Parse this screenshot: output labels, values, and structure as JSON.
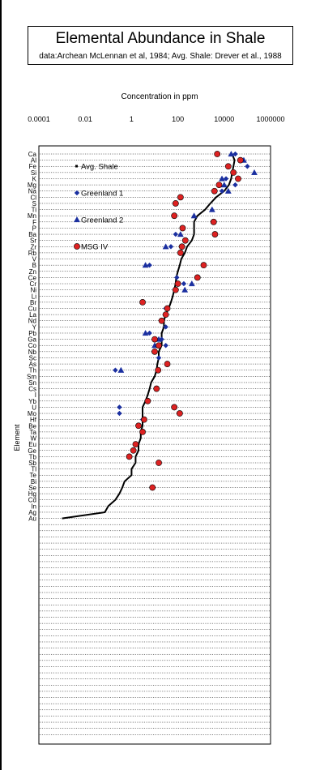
{
  "chart_data": {
    "type": "scatter",
    "title": "Elemental  Abundance in Shale",
    "subtitle": "data:Archean McLennan et al, 1984; Avg. Shale:  Drever et al., 1988",
    "xlabel": "Concentration in ppm",
    "ylabel": "Element",
    "x_scale": "log",
    "xlim": [
      0.0001,
      1000000
    ],
    "x_ticks": [
      "0.0001",
      "0.01",
      "1",
      "100",
      "10000",
      "1000000"
    ],
    "grid": "horizontal",
    "legend_position": "top-left",
    "elements": [
      "Ca",
      "Al",
      "Fe",
      "Si",
      "K",
      "Mg",
      "Na",
      "Cl",
      "S",
      "Ti",
      "Mn",
      "F",
      "P",
      "Ba",
      "Sr",
      "Zr",
      "Rb",
      "V",
      "B",
      "Zn",
      "Ce",
      "Cr",
      "Ni",
      "Li",
      "Br",
      "Cu",
      "La",
      "Nd",
      "Y",
      "Pb",
      "Ga",
      "Co",
      "Nb",
      "Sc",
      "As",
      "Th",
      "Sm",
      "Sn",
      "Cs",
      "I",
      "Yb",
      "U",
      "Mo",
      "Hf",
      "Be",
      "Ta",
      "W",
      "Eu",
      "Ge",
      "Tb",
      "Sb",
      "Tl",
      "Te",
      "Bi",
      "Se",
      "Hg",
      "Cd",
      "In",
      "Ag",
      "Au"
    ],
    "series": [
      {
        "name": "Avg. Shale",
        "marker": "line",
        "color": "#000000",
        "values": [
          22000,
          28000,
          25000,
          22000,
          20000,
          16000,
          10000,
          4500,
          2500,
          1500,
          700,
          500,
          500,
          500,
          400,
          250,
          200,
          140,
          120,
          100,
          85,
          80,
          70,
          60,
          50,
          40,
          30,
          25,
          25,
          20,
          20,
          20,
          15,
          15,
          13,
          12,
          10,
          7,
          6,
          5,
          4,
          3,
          3,
          3,
          3,
          2.5,
          2.5,
          2,
          2,
          1.5,
          1.5,
          1,
          1,
          0.5,
          0.4,
          0.3,
          0.2,
          0.1,
          0.07,
          0.001
        ]
      },
      {
        "name": "Greenland 1",
        "marker": "diamond",
        "color": "#1a2fa0",
        "points": [
          [
            "Ca",
            30000
          ],
          [
            "Fe",
            100000
          ],
          [
            "K",
            12000
          ],
          [
            "Mg",
            30000
          ],
          [
            "Na",
            8000
          ],
          [
            "Ba",
            80
          ],
          [
            "Zr",
            50
          ],
          [
            "B",
            6
          ],
          [
            "Ce",
            90
          ],
          [
            "Cr",
            180
          ],
          [
            "Cu",
            30
          ],
          [
            "Y",
            30
          ],
          [
            "Pb",
            6
          ],
          [
            "Ga",
            20
          ],
          [
            "Co",
            30
          ],
          [
            "Sc",
            15
          ],
          [
            "Th",
            0.2
          ],
          [
            "U",
            0.3
          ],
          [
            "Mo",
            0.3
          ],
          [
            "Hf",
            3
          ]
        ]
      },
      {
        "name": "Greenland 2",
        "marker": "triangle",
        "color": "#1a2fa0",
        "points": [
          [
            "Ca",
            20000
          ],
          [
            "Al",
            70000
          ],
          [
            "Si",
            200000
          ],
          [
            "K",
            8000
          ],
          [
            "Mg",
            10000
          ],
          [
            "Na",
            15000
          ],
          [
            "Ti",
            3000
          ],
          [
            "Mn",
            500
          ],
          [
            "Ba",
            130
          ],
          [
            "Zr",
            30
          ],
          [
            "B",
            4
          ],
          [
            "Ni",
            200
          ],
          [
            "Cr",
            400
          ],
          [
            "Pb",
            4
          ],
          [
            "Ga",
            15
          ],
          [
            "Co",
            10
          ],
          [
            "Th",
            0.35
          ]
        ]
      },
      {
        "name": "MSG IV",
        "marker": "circle",
        "color": "#dd2222",
        "points": [
          [
            "Ca",
            5000
          ],
          [
            "Al",
            50000
          ],
          [
            "Fe",
            15000
          ],
          [
            "Si",
            25000
          ],
          [
            "K",
            40000
          ],
          [
            "Mg",
            6000
          ],
          [
            "Na",
            3800
          ],
          [
            "Cl",
            130
          ],
          [
            "S",
            80
          ],
          [
            "Mn",
            70
          ],
          [
            "F",
            3500
          ],
          [
            "P",
            160
          ],
          [
            "Ba",
            4000
          ],
          [
            "Sr",
            210
          ],
          [
            "Zr",
            150
          ],
          [
            "Rb",
            130
          ],
          [
            "B",
            1300
          ],
          [
            "Ce",
            700
          ],
          [
            "Cr",
            100
          ],
          [
            "Ni",
            80
          ],
          [
            "Br",
            3
          ],
          [
            "Cu",
            35
          ],
          [
            "La",
            30
          ],
          [
            "Nd",
            20
          ],
          [
            "Ga",
            10
          ],
          [
            "Co",
            15
          ],
          [
            "Nb",
            10
          ],
          [
            "As",
            35
          ],
          [
            "Th",
            14
          ],
          [
            "Cs",
            12
          ],
          [
            "Yb",
            5
          ],
          [
            "U",
            70
          ],
          [
            "Mo",
            120
          ],
          [
            "Hf",
            3.5
          ],
          [
            "Be",
            2
          ],
          [
            "Ta",
            3
          ],
          [
            "Eu",
            1.5
          ],
          [
            "Ge",
            1.2
          ],
          [
            "Tb",
            0.8
          ],
          [
            "Sb",
            15
          ],
          [
            "Se",
            8
          ]
        ]
      }
    ]
  }
}
